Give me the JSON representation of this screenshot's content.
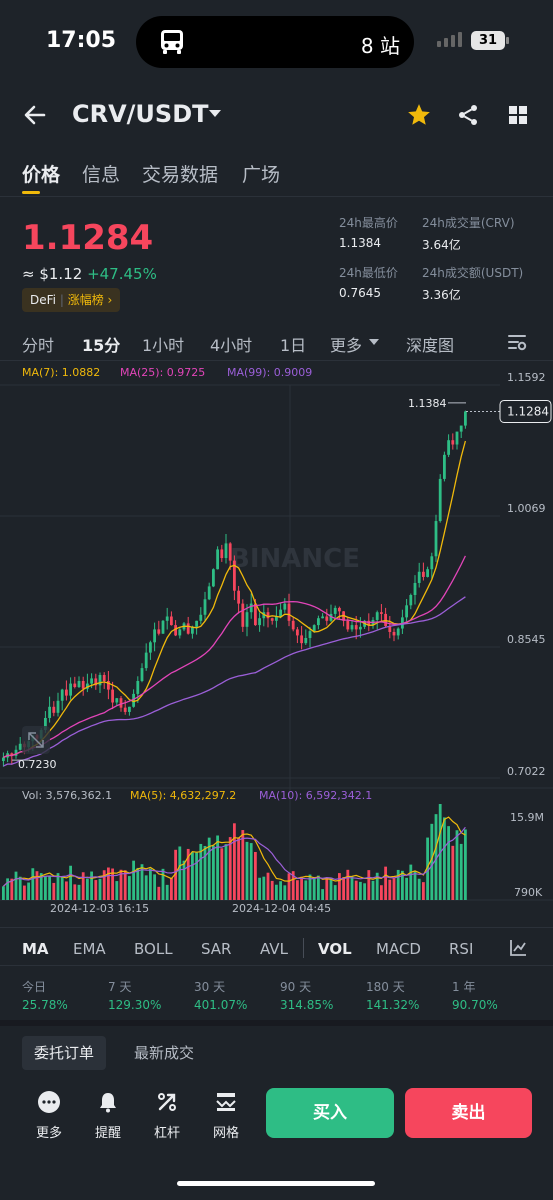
{
  "status_bar": {
    "time": "17:05",
    "island_text": "8 站",
    "battery": "31"
  },
  "header": {
    "pair": "CRV/USDT"
  },
  "tabs": [
    {
      "label": "价格",
      "active": true
    },
    {
      "label": "信息",
      "active": false
    },
    {
      "label": "交易数据",
      "active": false
    },
    {
      "label": "广场",
      "active": false
    }
  ],
  "price": {
    "last": "1.1284",
    "approx": "≈ $1.12",
    "change": "+47.45%",
    "tag_category": "DeFi",
    "tag_rank": "涨幅榜"
  },
  "stats": {
    "high_label": "24h最高价",
    "high": "1.1384",
    "low_label": "24h最低价",
    "low": "0.7645",
    "vol_crv_label": "24h成交量(CRV)",
    "vol_crv": "3.64亿",
    "vol_usdt_label": "24h成交额(USDT)",
    "vol_usdt": "3.36亿"
  },
  "intervals": [
    {
      "label": "分时"
    },
    {
      "label": "15分"
    },
    {
      "label": "1小时"
    },
    {
      "label": "4小时"
    },
    {
      "label": "1日"
    },
    {
      "label": "更多"
    },
    {
      "label": "深度图"
    }
  ],
  "chart": {
    "ma7": "MA(7): 1.0882",
    "ma25": "MA(25): 0.9725",
    "ma99": "MA(99): 0.9009",
    "y_ticks": [
      "1.1592",
      "1.0069",
      "0.8545",
      "0.7022"
    ],
    "high_marker": "1.1384",
    "last_marker": "1.1284",
    "low_marker": "0.7230",
    "watermark": "BINANCE",
    "vol": "Vol: 3,576,362.1",
    "vol_ma5": "MA(5): 4,632,297.2",
    "vol_ma10": "MA(10): 6,592,342.1",
    "vol_ticks": [
      "15.9M",
      "790K"
    ],
    "x_ticks": [
      "2024-12-03 16:15",
      "2024-12-04 04:45"
    ],
    "colors": {
      "up": "#2ebd85",
      "down": "#f6465d",
      "ma7": "#f0b90b",
      "ma25": "#e245b9",
      "ma99": "#9b5fd8"
    }
  },
  "chart_data": {
    "type": "candlestick",
    "ylim": [
      0.7022,
      1.1592
    ],
    "close": [
      0.726,
      0.731,
      0.728,
      0.735,
      0.742,
      0.738,
      0.745,
      0.752,
      0.748,
      0.758,
      0.772,
      0.785,
      0.778,
      0.792,
      0.805,
      0.798,
      0.812,
      0.808,
      0.815,
      0.806,
      0.812,
      0.818,
      0.81,
      0.822,
      0.815,
      0.805,
      0.79,
      0.795,
      0.784,
      0.779,
      0.785,
      0.8,
      0.815,
      0.83,
      0.848,
      0.86,
      0.875,
      0.87,
      0.885,
      0.89,
      0.88,
      0.868,
      0.875,
      0.882,
      0.87,
      0.878,
      0.885,
      0.892,
      0.91,
      0.925,
      0.945,
      0.968,
      0.958,
      0.975,
      0.955,
      0.92,
      0.905,
      0.878,
      0.895,
      0.905,
      0.88,
      0.888,
      0.895,
      0.888,
      0.885,
      0.89,
      0.898,
      0.905,
      0.885,
      0.875,
      0.868,
      0.859,
      0.865,
      0.873,
      0.88,
      0.888,
      0.89,
      0.885,
      0.893,
      0.9,
      0.896,
      0.885,
      0.875,
      0.88,
      0.875,
      0.878,
      0.885,
      0.88,
      0.886,
      0.895,
      0.893,
      0.879,
      0.872,
      0.868,
      0.876,
      0.889,
      0.903,
      0.915,
      0.929,
      0.942,
      0.936,
      0.945,
      0.96,
      1.001,
      1.05,
      1.078,
      1.095,
      1.09,
      1.105,
      1.112,
      1.1284
    ],
    "vol_ticks": [
      "15.9M",
      "790K"
    ]
  },
  "indicators": [
    {
      "label": "MA",
      "active": true
    },
    {
      "label": "EMA"
    },
    {
      "label": "BOLL"
    },
    {
      "label": "SAR"
    },
    {
      "label": "AVL"
    },
    {
      "label": "VOL",
      "active": true
    },
    {
      "label": "MACD"
    },
    {
      "label": "RSI"
    }
  ],
  "periods": [
    {
      "label": "今日",
      "value": "25.78%"
    },
    {
      "label": "7 天",
      "value": "129.30%"
    },
    {
      "label": "30 天",
      "value": "401.07%"
    },
    {
      "label": "90 天",
      "value": "314.85%"
    },
    {
      "label": "180 天",
      "value": "141.32%"
    },
    {
      "label": "1 年",
      "value": "90.70%"
    }
  ],
  "order_tabs": [
    {
      "label": "委托订单",
      "active": true
    },
    {
      "label": "最新成交",
      "active": false
    }
  ],
  "bottom": {
    "more": "更多",
    "alert": "提醒",
    "leverage": "杠杆",
    "grid": "网格",
    "buy": "买入",
    "sell": "卖出"
  }
}
